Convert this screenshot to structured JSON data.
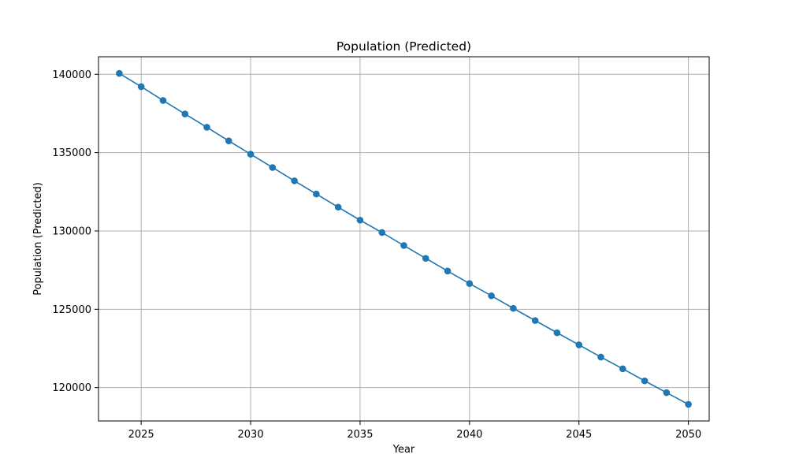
{
  "chart_data": {
    "type": "line",
    "title": "Population (Predicted)",
    "xlabel": "Year",
    "ylabel": "Population (Predicted)",
    "xlim": [
      2023.05,
      2050.95
    ],
    "ylim": [
      117870,
      141120
    ],
    "x_ticks": [
      2025,
      2030,
      2035,
      2040,
      2045,
      2050
    ],
    "y_ticks": [
      120000,
      125000,
      130000,
      135000,
      140000
    ],
    "x_tick_labels": [
      "2025",
      "2030",
      "2035",
      "2040",
      "2045",
      "2050"
    ],
    "y_tick_labels": [
      "120000",
      "125000",
      "130000",
      "135000",
      "140000"
    ],
    "grid": true,
    "marker": "circle",
    "colors": {
      "line": "#1f77b4",
      "grid": "#b0b0b0",
      "axes": "#000000"
    },
    "series": [
      {
        "x": [
          2024,
          2025,
          2026,
          2027,
          2028,
          2029,
          2030,
          2031,
          2032,
          2033,
          2034,
          2035,
          2036,
          2037,
          2038,
          2039,
          2040,
          2041,
          2042,
          2043,
          2044,
          2045,
          2046,
          2047,
          2048,
          2049,
          2050
        ],
        "values": [
          140060,
          139210,
          138330,
          137470,
          136620,
          135750,
          134900,
          134050,
          133200,
          132360,
          131520,
          130690,
          129900,
          129070,
          128250,
          127440,
          126640,
          125860,
          125060,
          124280,
          123500,
          122730,
          121950,
          121200,
          120430,
          119680,
          118930
        ]
      }
    ]
  }
}
